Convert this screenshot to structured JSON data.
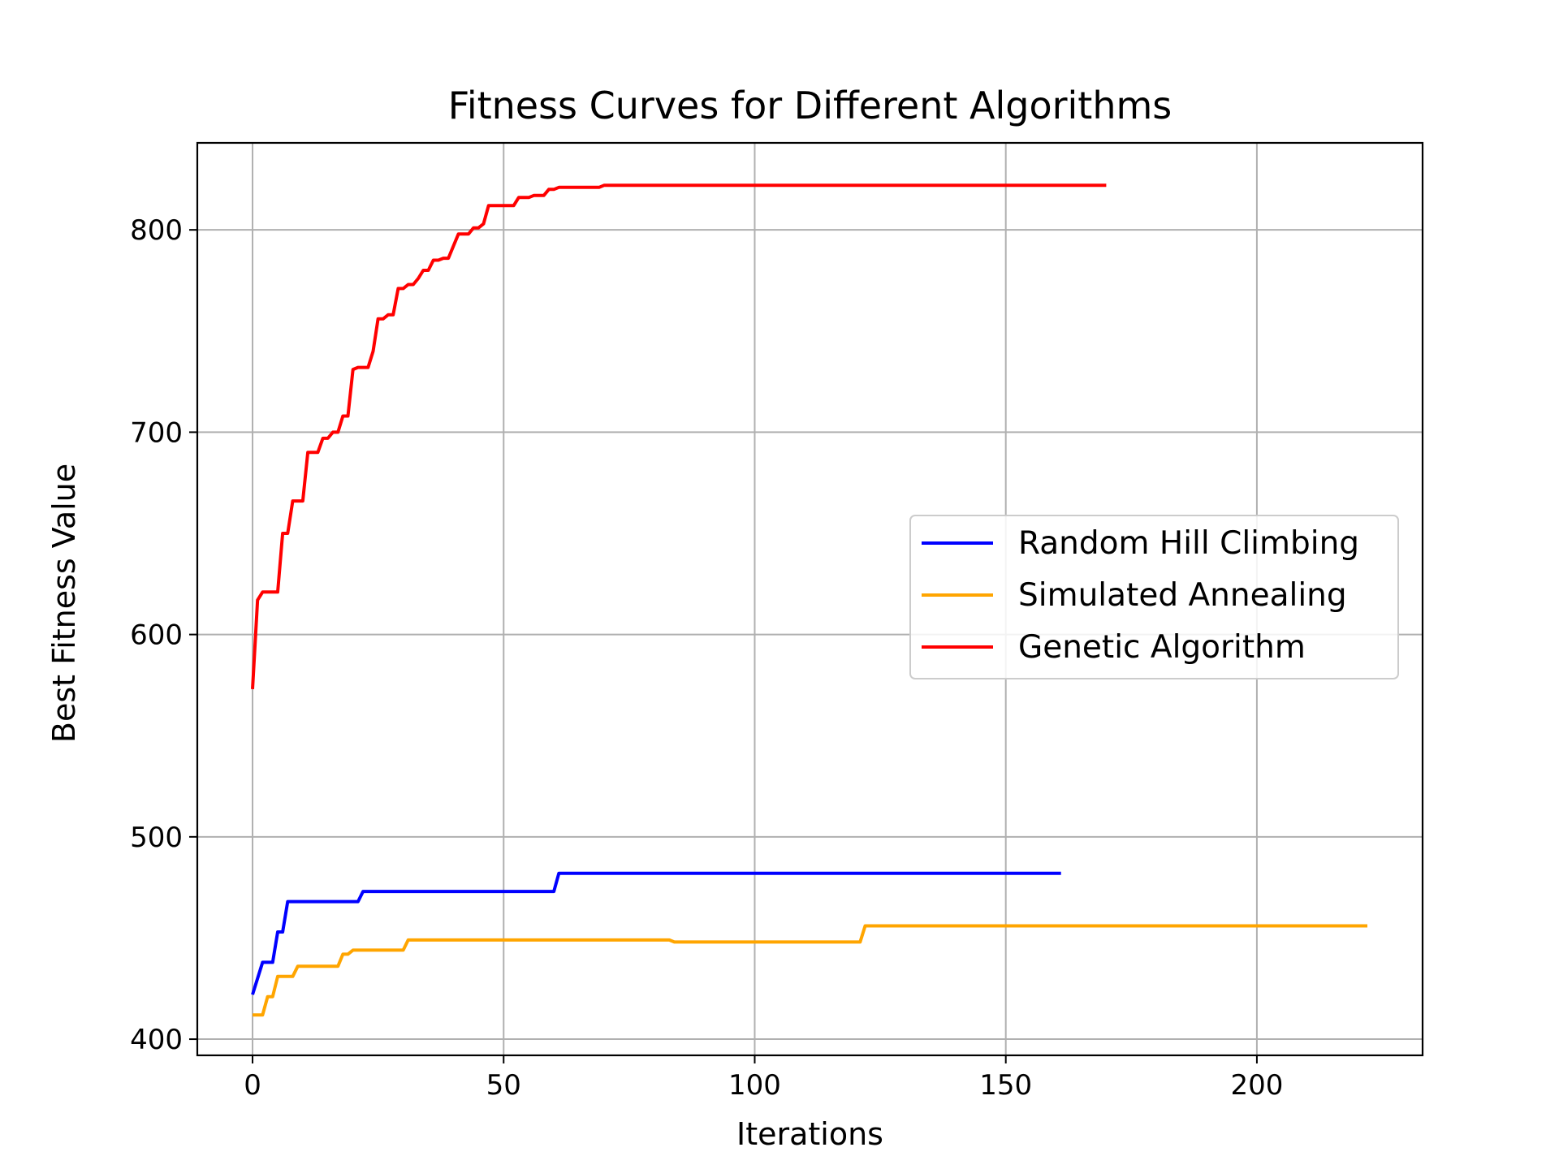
{
  "chart_data": {
    "type": "line",
    "title": "Fitness Curves for Different Algorithms",
    "xlabel": "Iterations",
    "ylabel": "Best Fitness Value",
    "xlim": [
      -11,
      233
    ],
    "ylim": [
      392,
      843
    ],
    "xticks": [
      0,
      50,
      100,
      150,
      200
    ],
    "yticks": [
      400,
      500,
      600,
      700,
      800
    ],
    "grid": true,
    "legend_position": "center-right",
    "series": [
      {
        "name": "Random Hill Climbing",
        "color": "#0000ff",
        "x": [
          0,
          2,
          4,
          5,
          6,
          7,
          21,
          22,
          60,
          61,
          161
        ],
        "y": [
          422,
          438,
          438,
          453,
          453,
          468,
          468,
          473,
          473,
          482,
          482
        ]
      },
      {
        "name": "Simulated Annealing",
        "color": "#ffa500",
        "x": [
          0,
          2,
          3,
          4,
          5,
          6,
          8,
          9,
          17,
          18,
          19,
          20,
          30,
          31,
          83,
          84,
          121,
          122,
          222
        ],
        "y": [
          412,
          412,
          421,
          421,
          431,
          431,
          431,
          436,
          436,
          442,
          442,
          444,
          444,
          449,
          449,
          448,
          448,
          456,
          456
        ]
      },
      {
        "name": "Genetic Algorithm",
        "color": "#ff0000",
        "x": [
          0,
          1,
          2,
          3,
          4,
          5,
          6,
          7,
          8,
          9,
          10,
          11,
          12,
          13,
          14,
          15,
          16,
          17,
          18,
          19,
          20,
          21,
          22,
          23,
          24,
          25,
          26,
          27,
          28,
          29,
          30,
          31,
          32,
          33,
          34,
          35,
          36,
          37,
          38,
          39,
          40,
          41,
          42,
          43,
          44,
          45,
          46,
          47,
          48,
          49,
          50,
          51,
          52,
          53,
          54,
          55,
          56,
          57,
          58,
          59,
          60,
          61,
          62,
          63,
          64,
          65,
          66,
          67,
          68,
          69,
          70,
          170
        ],
        "y": [
          573,
          617,
          621,
          621,
          621,
          621,
          650,
          650,
          666,
          666,
          666,
          690,
          690,
          690,
          697,
          697,
          700,
          700,
          708,
          708,
          731,
          732,
          732,
          732,
          740,
          756,
          756,
          758,
          758,
          771,
          771,
          773,
          773,
          776,
          780,
          780,
          785,
          785,
          786,
          786,
          792,
          798,
          798,
          798,
          801,
          801,
          803,
          812,
          812,
          812,
          812,
          812,
          812,
          816,
          816,
          816,
          817,
          817,
          817,
          820,
          820,
          821,
          821,
          821,
          821,
          821,
          821,
          821,
          821,
          821,
          822,
          822
        ]
      }
    ]
  }
}
